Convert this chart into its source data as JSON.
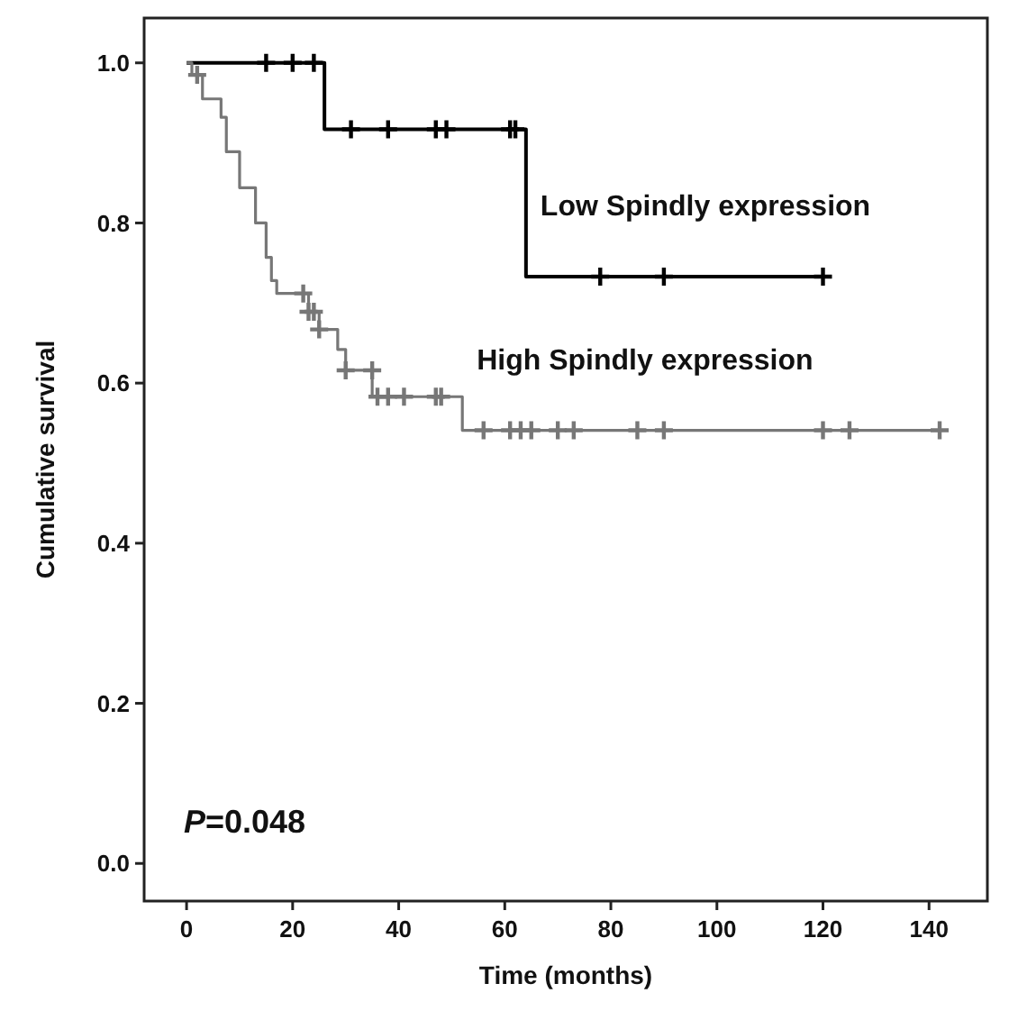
{
  "chart_data": {
    "type": "step",
    "xlabel": "Time (months)",
    "ylabel": "Cumulative survival",
    "xlim": [
      -8,
      151
    ],
    "ylim": [
      -0.047,
      1.056
    ],
    "xticks": [
      0,
      20,
      40,
      60,
      80,
      100,
      120,
      140
    ],
    "yticks": [
      {
        "value": 0,
        "label": "0.0"
      },
      {
        "value": 0.2,
        "label": "0.2"
      },
      {
        "value": 0.4,
        "label": "0.4"
      },
      {
        "value": 0.6,
        "label": "0.6"
      },
      {
        "value": 0.8,
        "label": "0.8"
      },
      {
        "value": 1,
        "label": "1.0"
      }
    ],
    "grid": false,
    "line_style": "solid",
    "annotations": [
      "P=0.048"
    ],
    "series": [
      {
        "name": "Low Spindly expression",
        "type": "step",
        "color": "#000000",
        "marker": "none",
        "x": [
          0,
          26,
          64,
          120
        ],
        "values": [
          1,
          0.917,
          0.733,
          0.733
        ]
      },
      {
        "name": "High Spindly expression",
        "type": "step",
        "color": "#777777",
        "marker": "none",
        "x": [
          0,
          1,
          3,
          6.5,
          7.5,
          10,
          13,
          15,
          16,
          17,
          23,
          25,
          28.5,
          30,
          35,
          52,
          142
        ],
        "values": [
          1,
          0.985,
          0.955,
          0.932,
          0.889,
          0.844,
          0.8,
          0.757,
          0.728,
          0.712,
          0.689,
          0.667,
          0.642,
          0.616,
          0.583,
          0.541,
          0.541
        ]
      },
      {
        "type": "scatter",
        "color": "#000000",
        "marker": "cross",
        "x": [
          15,
          20,
          24,
          31,
          38,
          47,
          49,
          61,
          62,
          78,
          90,
          120
        ],
        "values": [
          1,
          1,
          1,
          0.917,
          0.917,
          0.917,
          0.917,
          0.917,
          0.917,
          0.733,
          0.733,
          0.733
        ]
      },
      {
        "type": "scatter",
        "color": "#777777",
        "marker": "cross",
        "x": [
          2,
          22,
          23,
          24,
          25,
          30,
          35,
          36,
          38,
          41,
          47,
          48,
          56,
          61,
          63,
          65,
          70,
          73,
          85,
          90,
          120,
          125,
          142
        ],
        "values": [
          0.985,
          0.712,
          0.689,
          0.689,
          0.667,
          0.616,
          0.616,
          0.583,
          0.583,
          0.583,
          0.583,
          0.583,
          0.541,
          0.541,
          0.541,
          0.541,
          0.541,
          0.541,
          0.541,
          0.541,
          0.541,
          0.541,
          0.541
        ]
      }
    ]
  }
}
